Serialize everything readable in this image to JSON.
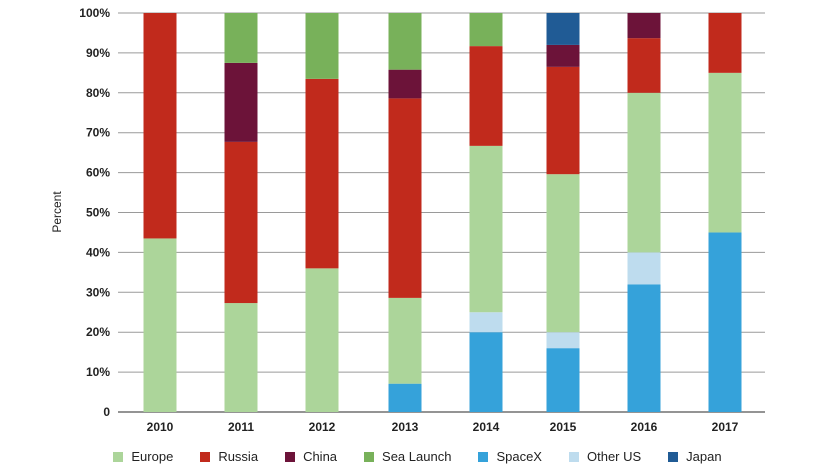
{
  "chart_data": {
    "type": "bar",
    "stacked": true,
    "title": "",
    "xlabel": "",
    "ylabel": "Percent",
    "ylim": [
      0,
      100
    ],
    "yticks": [
      "0",
      "10%",
      "20%",
      "30%",
      "40%",
      "50%",
      "60%",
      "70%",
      "80%",
      "90%",
      "100%"
    ],
    "grid": true,
    "legend_position": "bottom",
    "categories": [
      "2010",
      "2011",
      "2012",
      "2013",
      "2014",
      "2015",
      "2016",
      "2017"
    ],
    "series": [
      {
        "name": "SpaceX",
        "color": "#35a2da",
        "values": [
          0,
          0,
          0,
          7.1,
          20,
          16,
          32,
          45
        ]
      },
      {
        "name": "Other US",
        "color": "#bedcee",
        "values": [
          0,
          0,
          0,
          0,
          5,
          4,
          8,
          0
        ]
      },
      {
        "name": "Europe",
        "color": "#acd59a",
        "values": [
          43.5,
          27.3,
          36,
          21.5,
          41.7,
          39.6,
          40,
          40
        ]
      },
      {
        "name": "Russia",
        "color": "#c12a1c",
        "values": [
          56.5,
          40.4,
          47.5,
          50,
          25,
          26.9,
          13.7,
          15
        ]
      },
      {
        "name": "China",
        "color": "#6c1339",
        "values": [
          0,
          19.8,
          0,
          7.2,
          0,
          5.5,
          6.3,
          0
        ]
      },
      {
        "name": "Sea Launch",
        "color": "#78b15a",
        "values": [
          0,
          12.5,
          16.5,
          14.2,
          8.3,
          0,
          0,
          0
        ]
      },
      {
        "name": "Japan",
        "color": "#205b95",
        "values": [
          0,
          0,
          0,
          0,
          0,
          8,
          0,
          0
        ]
      }
    ],
    "legend_order": [
      "Europe",
      "Russia",
      "China",
      "Sea Launch",
      "SpaceX",
      "Other US",
      "Japan"
    ]
  }
}
